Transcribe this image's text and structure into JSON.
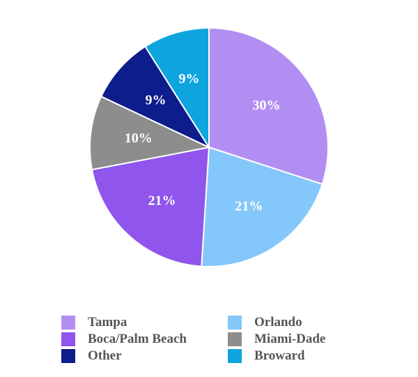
{
  "chart_data": {
    "type": "pie",
    "title": "",
    "slices": [
      {
        "label": "Tampa",
        "value": 30,
        "display": "30%",
        "color": "#b28ef3"
      },
      {
        "label": "Orlando",
        "value": 21,
        "display": "21%",
        "color": "#84c7fa"
      },
      {
        "label": "Boca/Palm Beach",
        "value": 21,
        "display": "21%",
        "color": "#8f55ec"
      },
      {
        "label": "Miami-Dade",
        "value": 10,
        "display": "10%",
        "color": "#8d8d8d"
      },
      {
        "label": "Other",
        "value": 9,
        "display": "9%",
        "color": "#0d1d8c"
      },
      {
        "label": "Broward",
        "value": 9,
        "display": "9%",
        "color": "#0ea5df"
      }
    ],
    "legend": {
      "placement": "bottom",
      "entries": [
        "Tampa",
        "Orlando",
        "Boca/Palm Beach",
        "Miami-Dade",
        "Other",
        "Broward"
      ]
    },
    "start_angle": "12 o'clock",
    "direction": "clockwise"
  }
}
